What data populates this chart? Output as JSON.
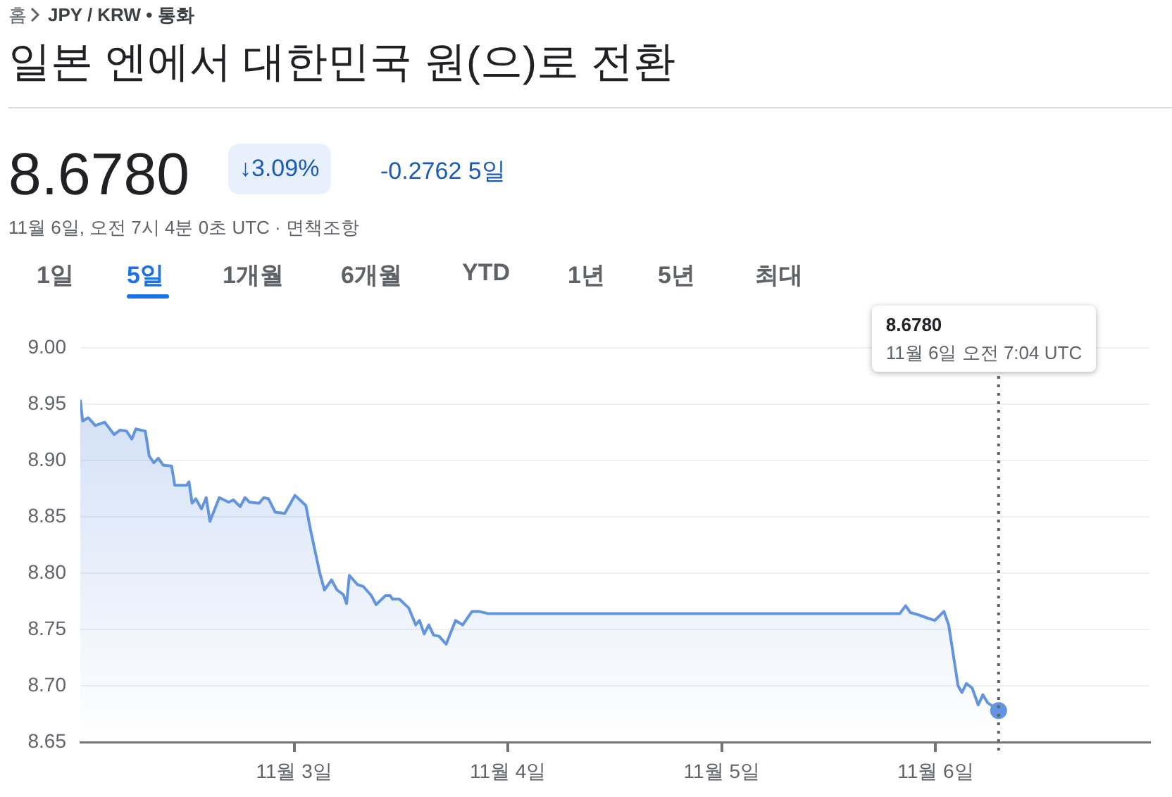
{
  "chart_data": {
    "type": "area",
    "title": "일본 엔에서 대한민국 원(으)로 전환",
    "annotations": [
      "홈",
      "JPY / KRW • 통화",
      "8.6780",
      "↓3.09%",
      "-0.2762 5일",
      "11월 6일, 오전 7시 4분 0초 UTC · 면책조항",
      "1일",
      "5일",
      "1개월",
      "6개월",
      "YTD",
      "1년",
      "5년",
      "최대",
      "8.6780",
      "11월 6일 오전 7:04 UTC"
    ],
    "x": [
      "--11-02T00:00",
      "--11-02T00:16",
      "--11-02T00:53",
      "--11-02T01:41",
      "--11-02T02:44",
      "--11-02T03:48",
      "--11-02T04:28",
      "--11-02T05:12",
      "--11-02T05:47",
      "--11-02T06:14",
      "--11-02T07:18",
      "--11-02T07:44",
      "--11-02T08:15",
      "--11-02T08:46",
      "--11-02T09:17",
      "--11-02T10:15",
      "--11-02T10:36",
      "--11-02T11:56",
      "--11-02T12:12",
      "--11-02T12:33",
      "--11-02T12:58",
      "--11-02T13:36",
      "--11-02T14:08",
      "--11-02T14:33",
      "--11-02T15:36",
      "--11-02T16:39",
      "--11-02T17:11",
      "--11-02T17:57",
      "--11-02T18:29",
      "--11-02T19:00",
      "--11-02T20:04",
      "--11-02T20:36",
      "--11-02T21:07",
      "--11-02T21:53",
      "--11-02T22:57",
      "--11-03T00:06",
      "--11-03T01:19",
      "--11-03T01:51",
      "--11-03T02:53",
      "--11-03T03:24",
      "--11-03T04:12",
      "--11-03T04:49",
      "--11-03T05:31",
      "--11-03T05:53",
      "--11-03T06:12",
      "--11-03T07:05",
      "--11-03T07:47",
      "--11-03T08:40",
      "--11-03T09:12",
      "--11-03T10:15",
      "--11-03T10:47",
      "--11-03T11:02",
      "--11-03T11:48",
      "--11-03T12:52",
      "--11-03T13:39",
      "--11-03T14:04",
      "--11-03T14:36",
      "--11-03T15:07",
      "--11-03T15:39",
      "--11-03T16:16",
      "--11-03T17:04",
      "--11-03T18:07",
      "--11-03T18:55",
      "--11-03T19:58",
      "--11-03T20:44",
      "--11-03T21:48",
      "--11-05T19:58",
      "--11-05T20:38",
      "--11-05T21:10",
      "--11-05T22:03",
      "--11-05T23:07",
      "--11-05T23:54",
      "--11-06T00:56",
      "--11-06T01:28",
      "--11-06T02:31",
      "--11-06T02:57",
      "--11-06T03:27",
      "--11-06T04:06",
      "--11-06T04:47",
      "--11-06T05:18",
      "--11-06T05:50",
      "--11-06T07:04"
    ],
    "series": [
      {
        "color": "#6394e0",
        "values": [
          8.954,
          8.935,
          8.938,
          8.931,
          8.934,
          8.923,
          8.927,
          8.926,
          8.919,
          8.928,
          8.926,
          8.904,
          8.898,
          8.902,
          8.896,
          8.895,
          8.878,
          8.878,
          8.881,
          8.862,
          8.866,
          8.857,
          8.867,
          8.846,
          8.867,
          8.863,
          8.865,
          8.859,
          8.867,
          8.863,
          8.862,
          8.867,
          8.866,
          8.854,
          8.853,
          8.869,
          8.86,
          8.838,
          8.8,
          8.785,
          8.794,
          8.785,
          8.781,
          8.773,
          8.798,
          8.79,
          8.788,
          8.78,
          8.772,
          8.78,
          8.78,
          8.777,
          8.777,
          8.769,
          8.754,
          8.758,
          8.746,
          8.754,
          8.745,
          8.744,
          8.737,
          8.758,
          8.754,
          8.766,
          8.766,
          8.764,
          8.764,
          8.771,
          8.765,
          8.763,
          8.76,
          8.758,
          8.766,
          8.754,
          8.7,
          8.694,
          8.702,
          8.698,
          8.683,
          8.692,
          8.685,
          8.678
        ]
      }
    ],
    "xlim": [
      "--11-02T00:00",
      "--11-07T00:00"
    ],
    "xticks": [
      {
        "value": "--11-03",
        "label": "11월 3일"
      },
      {
        "value": "--11-04",
        "label": "11월 4일"
      },
      {
        "value": "--11-05",
        "label": "11월 5일"
      },
      {
        "value": "--11-06",
        "label": "11월 6일"
      }
    ],
    "ylim": [
      8.65,
      9.0
    ],
    "yticks": [
      {
        "value": 8.65,
        "label": "8.65"
      },
      {
        "value": 8.7,
        "label": "8.70"
      },
      {
        "value": 8.75,
        "label": "8.75"
      },
      {
        "value": 8.8,
        "label": "8.80"
      },
      {
        "value": 8.85,
        "label": "8.85"
      },
      {
        "value": 8.9,
        "label": "8.90"
      },
      {
        "value": 8.95,
        "label": "8.95"
      },
      {
        "value": 9.0,
        "label": "9.00"
      }
    ],
    "grid": "y",
    "legend": false,
    "line_style": "solid",
    "ref_lines": [
      {
        "axis": "x",
        "value": "--11-06T07:04",
        "color": "#5f6368",
        "line_style": "dotted"
      }
    ]
  }
}
